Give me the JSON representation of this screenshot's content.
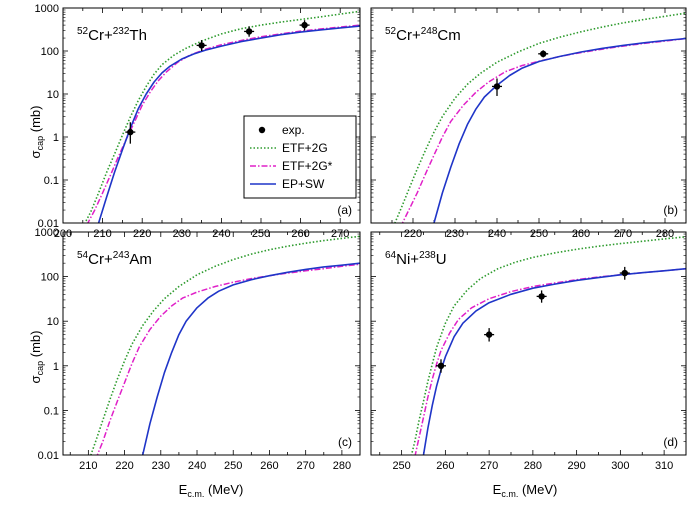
{
  "figure": {
    "ylabel_main": "σ",
    "ylabel_sub": "cap",
    "ylabel_unit": "(mb)",
    "xlabel_main": "E",
    "xlabel_sub": "c.m.",
    "xlabel_unit": "(MeV)"
  },
  "legend": {
    "items": [
      {
        "label": "exp.",
        "kind": "marker",
        "color": "#000000"
      },
      {
        "label": "ETF+2G",
        "kind": "dot",
        "color": "#2e9b2e"
      },
      {
        "label": "ETF+2G*",
        "kind": "dashdot",
        "color": "#e020c8"
      },
      {
        "label": "EP+SW",
        "kind": "solid",
        "color": "#1f35c8"
      }
    ]
  },
  "chart_data": [
    {
      "type": "line",
      "panel": "(a)",
      "title": {
        "a": "52",
        "b": "Cr+",
        "c": "232",
        "d": "Th"
      },
      "xlim": [
        200,
        275
      ],
      "ylim": [
        0.01,
        1000
      ],
      "yscale": "log",
      "xticks": [
        200,
        210,
        220,
        230,
        240,
        250,
        260,
        270
      ],
      "yticks": [
        "0.01",
        "0.1",
        "1",
        "10",
        "100",
        "1000"
      ],
      "series": [
        {
          "name": "ETF+2G",
          "x": [
            205,
            207,
            209,
            211,
            213,
            215,
            217,
            219,
            221,
            223,
            225,
            228,
            231,
            235,
            240,
            245,
            250,
            255,
            260,
            265,
            270,
            275
          ],
          "y": [
            0.008,
            0.018,
            0.05,
            0.15,
            0.4,
            1.1,
            2.9,
            7,
            15,
            29,
            48,
            80,
            115,
            170,
            250,
            330,
            400,
            470,
            540,
            620,
            720,
            840
          ]
        },
        {
          "name": "ETF+2G*",
          "x": [
            206,
            208,
            210,
            212,
            214,
            216,
            218,
            220,
            222,
            224,
            226,
            229,
            232,
            236,
            240,
            245,
            250,
            255,
            260,
            265,
            270,
            275
          ],
          "y": [
            0.009,
            0.02,
            0.05,
            0.13,
            0.35,
            0.9,
            2.2,
            5.5,
            11,
            20,
            32,
            55,
            80,
            110,
            140,
            175,
            215,
            250,
            290,
            325,
            360,
            400
          ]
        },
        {
          "name": "EP+SW",
          "x": [
            209,
            211,
            213,
            215,
            217,
            219,
            221,
            223,
            225,
            227,
            230,
            233,
            236,
            240,
            245,
            250,
            255,
            260,
            265,
            270,
            275
          ],
          "y": [
            0.01,
            0.04,
            0.15,
            0.5,
            1.6,
            4.5,
            10,
            19,
            31,
            44,
            65,
            85,
            105,
            130,
            165,
            200,
            240,
            275,
            310,
            345,
            380
          ]
        },
        {
          "name": "exp.",
          "x": [
            217,
            235,
            247,
            261
          ],
          "y": [
            1.3,
            135,
            285,
            400
          ],
          "yerr_lo": [
            0.6,
            35,
            70,
            100
          ],
          "yerr_hi": [
            0.9,
            45,
            90,
            120
          ]
        }
      ]
    },
    {
      "type": "line",
      "panel": "(b)",
      "title": {
        "a": "52",
        "b": "Cr+",
        "c": "248",
        "d": "Cm"
      },
      "xlim": [
        210,
        285
      ],
      "ylim": [
        0.01,
        1000
      ],
      "yscale": "log",
      "xticks": [
        220,
        230,
        240,
        250,
        260,
        270,
        280
      ],
      "yticks": [],
      "series": [
        {
          "name": "ETF+2G",
          "x": [
            215,
            217,
            219,
            221,
            223,
            225,
            227,
            230,
            233,
            236,
            240,
            245,
            250,
            255,
            260,
            265,
            270,
            275,
            280,
            285
          ],
          "y": [
            0.007,
            0.02,
            0.06,
            0.18,
            0.5,
            1.3,
            3,
            8,
            17,
            30,
            55,
            95,
            150,
            210,
            280,
            360,
            450,
            540,
            640,
            760
          ]
        },
        {
          "name": "ETF+2G*",
          "x": [
            217,
            219,
            221,
            223,
            225,
            227,
            229,
            232,
            235,
            238,
            242,
            246,
            250,
            255,
            260,
            265,
            270,
            275,
            280,
            285
          ],
          "y": [
            0.008,
            0.02,
            0.05,
            0.14,
            0.38,
            1,
            2.3,
            5.5,
            11,
            19,
            33,
            46,
            58,
            75,
            92,
            110,
            130,
            150,
            170,
            195
          ]
        },
        {
          "name": "EP+SW",
          "x": [
            225,
            227,
            229,
            231,
            233,
            235,
            237,
            240,
            243,
            246,
            250,
            255,
            260,
            265,
            270,
            275,
            280,
            285
          ],
          "y": [
            0.01,
            0.05,
            0.2,
            0.7,
            2,
            4.5,
            8.5,
            16,
            27,
            40,
            57,
            75,
            95,
            115,
            135,
            155,
            175,
            195
          ]
        },
        {
          "name": "exp.",
          "x": [
            240,
            251
          ],
          "y": [
            15,
            86
          ],
          "yerr_lo": [
            6,
            15
          ],
          "yerr_hi": [
            8,
            18
          ]
        }
      ]
    },
    {
      "type": "line",
      "panel": "(c)",
      "title": {
        "a": "54",
        "b": "Cr+",
        "c": "243",
        "d": "Am"
      },
      "xlim": [
        203,
        285
      ],
      "ylim": [
        0.01,
        1000
      ],
      "yscale": "log",
      "xticks": [
        210,
        220,
        230,
        240,
        250,
        260,
        270,
        280
      ],
      "yticks": [
        "0.01",
        "0.1",
        "1",
        "10",
        "100",
        "1000"
      ],
      "series": [
        {
          "name": "ETF+2G",
          "x": [
            210,
            212,
            214,
            216,
            218,
            220,
            222,
            225,
            228,
            231,
            235,
            240,
            245,
            250,
            255,
            260,
            265,
            270,
            275,
            280,
            285
          ],
          "y": [
            0.007,
            0.02,
            0.06,
            0.18,
            0.5,
            1.3,
            3,
            8,
            17,
            32,
            60,
            110,
            170,
            240,
            320,
            400,
            480,
            560,
            640,
            720,
            800
          ]
        },
        {
          "name": "ETF+2G*",
          "x": [
            212,
            214,
            216,
            218,
            220,
            222,
            224,
            227,
            230,
            233,
            236,
            240,
            245,
            250,
            255,
            260,
            265,
            270,
            275,
            280,
            285
          ],
          "y": [
            0.008,
            0.02,
            0.06,
            0.16,
            0.42,
            1.1,
            2.6,
            6.5,
            13,
            22,
            33,
            45,
            60,
            75,
            90,
            105,
            120,
            135,
            150,
            170,
            190
          ]
        },
        {
          "name": "EP+SW",
          "x": [
            225,
            227,
            229,
            231,
            233,
            235,
            237,
            240,
            243,
            246,
            250,
            255,
            260,
            265,
            270,
            275,
            280,
            285
          ],
          "y": [
            0.01,
            0.05,
            0.2,
            0.7,
            2,
            5,
            10,
            20,
            33,
            47,
            65,
            85,
            105,
            125,
            145,
            165,
            180,
            200
          ]
        }
      ]
    },
    {
      "type": "line",
      "panel": "(d)",
      "title": {
        "a": "64",
        "b": "Ni+",
        "c": "238",
        "d": "U"
      },
      "xlim": [
        243,
        315
      ],
      "ylim": [
        0.01,
        1000
      ],
      "yscale": "log",
      "xticks": [
        250,
        260,
        270,
        280,
        290,
        300,
        310
      ],
      "yticks": [],
      "series": [
        {
          "name": "ETF+2G",
          "x": [
            252,
            253,
            254,
            255,
            256,
            257,
            258,
            260,
            262,
            265,
            268,
            272,
            276,
            280,
            285,
            290,
            295,
            300,
            305,
            310,
            315
          ],
          "y": [
            0.008,
            0.02,
            0.06,
            0.16,
            0.45,
            1.1,
            2.6,
            9,
            22,
            50,
            90,
            150,
            210,
            270,
            340,
            410,
            480,
            550,
            620,
            700,
            780
          ]
        },
        {
          "name": "ETF+2G*",
          "x": [
            253,
            254,
            255,
            256,
            257,
            258,
            259,
            261,
            263,
            266,
            270,
            275,
            280,
            285,
            290,
            295,
            300,
            305,
            310,
            315
          ],
          "y": [
            0.009,
            0.025,
            0.07,
            0.2,
            0.5,
            1.1,
            2.2,
            5.5,
            11,
            20,
            32,
            46,
            60,
            72,
            85,
            98,
            110,
            122,
            135,
            150
          ]
        },
        {
          "name": "EP+SW",
          "x": [
            255,
            256,
            257,
            258,
            259,
            260,
            262,
            264,
            267,
            270,
            275,
            280,
            285,
            290,
            295,
            300,
            305,
            310,
            315
          ],
          "y": [
            0.01,
            0.04,
            0.13,
            0.35,
            0.8,
            1.6,
            4.5,
            9,
            17,
            26,
            40,
            55,
            68,
            82,
            95,
            110,
            122,
            135,
            150
          ]
        },
        {
          "name": "exp.",
          "x": [
            259,
            270,
            282,
            301
          ],
          "y": [
            1,
            5,
            36,
            120
          ],
          "yerr_lo": [
            0.3,
            1.5,
            10,
            35
          ],
          "yerr_hi": [
            0.4,
            2,
            13,
            45
          ]
        }
      ]
    }
  ]
}
